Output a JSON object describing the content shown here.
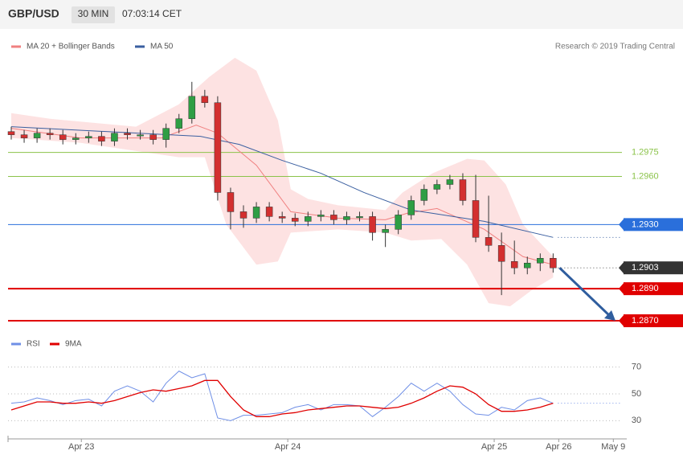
{
  "header": {
    "symbol": "GBP/USD",
    "interval": "30 MIN",
    "time": "07:03:14 CET",
    "credit": "Research © 2019 Trading Central"
  },
  "chart_data": [
    {
      "type": "candlestick",
      "xlim": [
        0,
        142
      ],
      "xticks": [
        {
          "value": 16.3,
          "label": "Apr 23"
        },
        {
          "value": 64.3,
          "label": "Apr 24"
        },
        {
          "value": 112.3,
          "label": "Apr 25"
        },
        {
          "value": 127.3,
          "label": "Apr 26"
        },
        {
          "value": 140,
          "label": "May 9"
        }
      ],
      "ylim": [
        1.2862,
        1.305
      ],
      "up_color": "#2e9e44",
      "down_color": "#d32f2f",
      "candles": {
        "x": [
          0,
          3,
          6,
          9,
          12,
          15,
          18,
          21,
          24,
          27,
          30,
          33,
          36,
          39,
          42,
          45,
          48,
          51,
          54,
          57,
          60,
          63,
          66,
          69,
          72,
          75,
          78,
          81,
          84,
          87,
          90,
          93,
          96,
          99,
          102,
          105,
          108,
          111,
          114,
          117,
          120,
          123,
          126
        ],
        "open": [
          1.2988,
          1.2986,
          1.2984,
          1.2987,
          1.2986,
          1.2983,
          1.2984,
          1.2985,
          1.2982,
          1.2987,
          1.2986,
          1.2986,
          1.2983,
          1.299,
          1.2996,
          1.301,
          1.3006,
          1.295,
          1.2938,
          1.2934,
          1.2941,
          1.2935,
          1.2934,
          1.2932,
          1.2935,
          1.2936,
          1.2933,
          1.2935,
          1.2935,
          1.2925,
          1.2927,
          1.2936,
          1.2945,
          1.2952,
          1.2955,
          1.2958,
          1.2945,
          1.2922,
          1.2917,
          1.2907,
          1.2903,
          1.2906,
          1.2909
        ],
        "high": [
          1.2991,
          1.2989,
          1.299,
          1.299,
          1.2989,
          1.2987,
          1.2988,
          1.2988,
          1.299,
          1.299,
          1.2989,
          1.2989,
          1.2993,
          1.2999,
          1.3019,
          1.3014,
          1.301,
          1.2953,
          1.2942,
          1.2944,
          1.2944,
          1.2938,
          1.2937,
          1.2938,
          1.2939,
          1.2939,
          1.2938,
          1.2938,
          1.2938,
          1.293,
          1.2939,
          1.2948,
          1.2955,
          1.2958,
          1.2961,
          1.2962,
          1.2961,
          1.2948,
          1.2925,
          1.292,
          1.291,
          1.2912,
          1.2912
        ],
        "low": [
          1.2983,
          1.2981,
          1.2981,
          1.2983,
          1.298,
          1.298,
          1.2981,
          1.2979,
          1.2979,
          1.2983,
          1.2983,
          1.298,
          1.2978,
          1.2987,
          1.2993,
          1.3003,
          1.2945,
          1.2927,
          1.2928,
          1.2931,
          1.2932,
          1.2931,
          1.2929,
          1.2929,
          1.2932,
          1.293,
          1.293,
          1.2932,
          1.292,
          1.2916,
          1.2924,
          1.2933,
          1.2942,
          1.2949,
          1.2952,
          1.2942,
          1.2919,
          1.2913,
          1.2886,
          1.2899,
          1.2899,
          1.2901,
          1.29
        ],
        "close": [
          1.2986,
          1.2984,
          1.2987,
          1.2986,
          1.2983,
          1.2984,
          1.2985,
          1.2982,
          1.2987,
          1.2986,
          1.2986,
          1.2983,
          1.299,
          1.2996,
          1.301,
          1.3006,
          1.295,
          1.2938,
          1.2934,
          1.2941,
          1.2935,
          1.2934,
          1.2932,
          1.2935,
          1.2936,
          1.2933,
          1.2935,
          1.2935,
          1.2925,
          1.2927,
          1.2936,
          1.2945,
          1.2952,
          1.2955,
          1.2958,
          1.2945,
          1.2922,
          1.2917,
          1.2907,
          1.2903,
          1.2906,
          1.2909,
          1.2903
        ]
      },
      "bands": {
        "color": "#fde2e2",
        "upper": {
          "x": [
            0,
            9,
            29,
            39,
            46,
            52,
            57,
            62,
            65,
            69,
            76,
            87,
            91,
            98,
            106,
            110,
            115,
            119,
            126
          ],
          "values": [
            1.29995,
            1.2996,
            1.2991,
            1.3005,
            1.3022,
            1.3034,
            1.3026,
            1.2995,
            1.2952,
            1.2946,
            1.2942,
            1.2939,
            1.295,
            1.2962,
            1.2971,
            1.297,
            1.2955,
            1.293,
            1.291
          ]
        },
        "lower": {
          "x": [
            0,
            16,
            39,
            45,
            50,
            57,
            62,
            65,
            76,
            87,
            93,
            100,
            106,
            111,
            116,
            121,
            126
          ],
          "values": [
            1.2984,
            1.2981,
            1.2972,
            1.2972,
            1.293,
            1.2905,
            1.2907,
            1.2925,
            1.2927,
            1.2925,
            1.292,
            1.2921,
            1.2905,
            1.2881,
            1.2879,
            1.2889,
            1.2897
          ]
        }
      },
      "series": [
        {
          "name": "MA 20 + Bollinger Bands",
          "color": "#f08080",
          "x": [
            0,
            16,
            35,
            43,
            48,
            57,
            65,
            76,
            87,
            92,
            99,
            110,
            119,
            126
          ],
          "values": [
            1.299,
            1.2984,
            1.2984,
            1.2992,
            1.2987,
            1.2967,
            1.2938,
            1.2934,
            1.2933,
            1.2937,
            1.294,
            1.2927,
            1.291,
            1.2905
          ]
        },
        {
          "name": "MA 50",
          "color": "#3a5fa0",
          "x": [
            0,
            44,
            53,
            63,
            72,
            82,
            93,
            98,
            110,
            126
          ],
          "values": [
            1.2991,
            1.2985,
            1.298,
            1.297,
            1.2962,
            1.295,
            1.2939,
            1.2937,
            1.2932,
            1.2922
          ]
        }
      ],
      "levels": [
        {
          "value": 1.2975,
          "label": "1.2975",
          "color": "#8bc34a",
          "style": "solid",
          "box": false
        },
        {
          "value": 1.296,
          "label": "1.2960",
          "color": "#8bc34a",
          "style": "solid",
          "box": false
        },
        {
          "value": 1.293,
          "label": "1.2930",
          "color": "#2a6fdb",
          "style": "solid",
          "box": true
        },
        {
          "value": 1.2903,
          "label": "1.2903",
          "color": "#333333",
          "style": "dotted",
          "box": true
        },
        {
          "value": 1.289,
          "label": "1.2890",
          "color": "#e00000",
          "style": "thick",
          "box": true
        },
        {
          "value": 1.287,
          "label": "1.2870",
          "color": "#e00000",
          "style": "thick",
          "box": true
        }
      ],
      "arrow_color": "#2f5d9e"
    },
    {
      "type": "line",
      "x": [
        0,
        3,
        6,
        9,
        12,
        15,
        18,
        21,
        24,
        27,
        30,
        33,
        36,
        39,
        42,
        45,
        48,
        51,
        54,
        57,
        60,
        63,
        66,
        69,
        72,
        75,
        78,
        81,
        84,
        87,
        90,
        93,
        96,
        99,
        102,
        105,
        108,
        111,
        114,
        117,
        120,
        123,
        126
      ],
      "ylim": [
        20,
        86
      ],
      "yticks": [
        30,
        50,
        70
      ],
      "grid": true,
      "series": [
        {
          "name": "RSI",
          "color": "#6f8fe6",
          "values": [
            43,
            44,
            47,
            45,
            42,
            45,
            46,
            41,
            52,
            56,
            52,
            44,
            58,
            67,
            62,
            65,
            32,
            30,
            34,
            34,
            35,
            36,
            40,
            42,
            38,
            42,
            42,
            41,
            33,
            40,
            48,
            58,
            52,
            58,
            52,
            42,
            35,
            34,
            40,
            38,
            45,
            47,
            43
          ]
        },
        {
          "name": "9MA",
          "color": "#e00000",
          "values": [
            38,
            41,
            44,
            44,
            43,
            43,
            44,
            43,
            45,
            48,
            51,
            53,
            52,
            54,
            56,
            60,
            60,
            48,
            38,
            33,
            33,
            35,
            36,
            38,
            39,
            40,
            41,
            41,
            40,
            39,
            40,
            43,
            47,
            52,
            56,
            55,
            50,
            42,
            37,
            37,
            38,
            40,
            43
          ]
        }
      ]
    }
  ]
}
